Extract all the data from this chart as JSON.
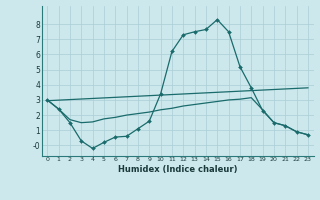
{
  "background_color": "#cce8ed",
  "grid_color": "#aacdd4",
  "line_color": "#1a6b6b",
  "xlabel": "Humidex (Indice chaleur)",
  "xlim": [
    -0.5,
    23.5
  ],
  "ylim": [
    -0.7,
    9.2
  ],
  "yticks": [
    0,
    1,
    2,
    3,
    4,
    5,
    6,
    7,
    8
  ],
  "ytick_labels": [
    "-0",
    "1",
    "2",
    "3",
    "4",
    "5",
    "6",
    "7",
    "8"
  ],
  "xticks": [
    0,
    1,
    2,
    3,
    4,
    5,
    6,
    7,
    8,
    9,
    10,
    11,
    12,
    13,
    14,
    15,
    16,
    17,
    18,
    19,
    20,
    21,
    22,
    23
  ],
  "line1_x": [
    0,
    1,
    2,
    3,
    4,
    5,
    6,
    7,
    8,
    9,
    10,
    11,
    12,
    13,
    14,
    15,
    16,
    17,
    18,
    19,
    20,
    21,
    22,
    23
  ],
  "line1_y": [
    3.0,
    2.4,
    1.5,
    0.3,
    -0.2,
    0.2,
    0.55,
    0.6,
    1.1,
    1.6,
    3.4,
    6.2,
    7.3,
    7.5,
    7.65,
    8.3,
    7.5,
    5.2,
    3.8,
    2.3,
    1.5,
    1.3,
    0.9,
    0.7
  ],
  "line2_x": [
    0,
    23
  ],
  "line2_y": [
    2.95,
    3.8
  ],
  "line3_x": [
    0,
    1,
    2,
    3,
    4,
    5,
    6,
    7,
    8,
    9,
    10,
    11,
    12,
    13,
    14,
    15,
    16,
    17,
    18,
    19,
    20,
    21,
    22,
    23
  ],
  "line3_y": [
    3.0,
    2.4,
    1.7,
    1.5,
    1.55,
    1.75,
    1.85,
    2.0,
    2.1,
    2.2,
    2.35,
    2.45,
    2.6,
    2.7,
    2.8,
    2.9,
    3.0,
    3.05,
    3.15,
    2.35,
    1.5,
    1.3,
    0.9,
    0.7
  ]
}
